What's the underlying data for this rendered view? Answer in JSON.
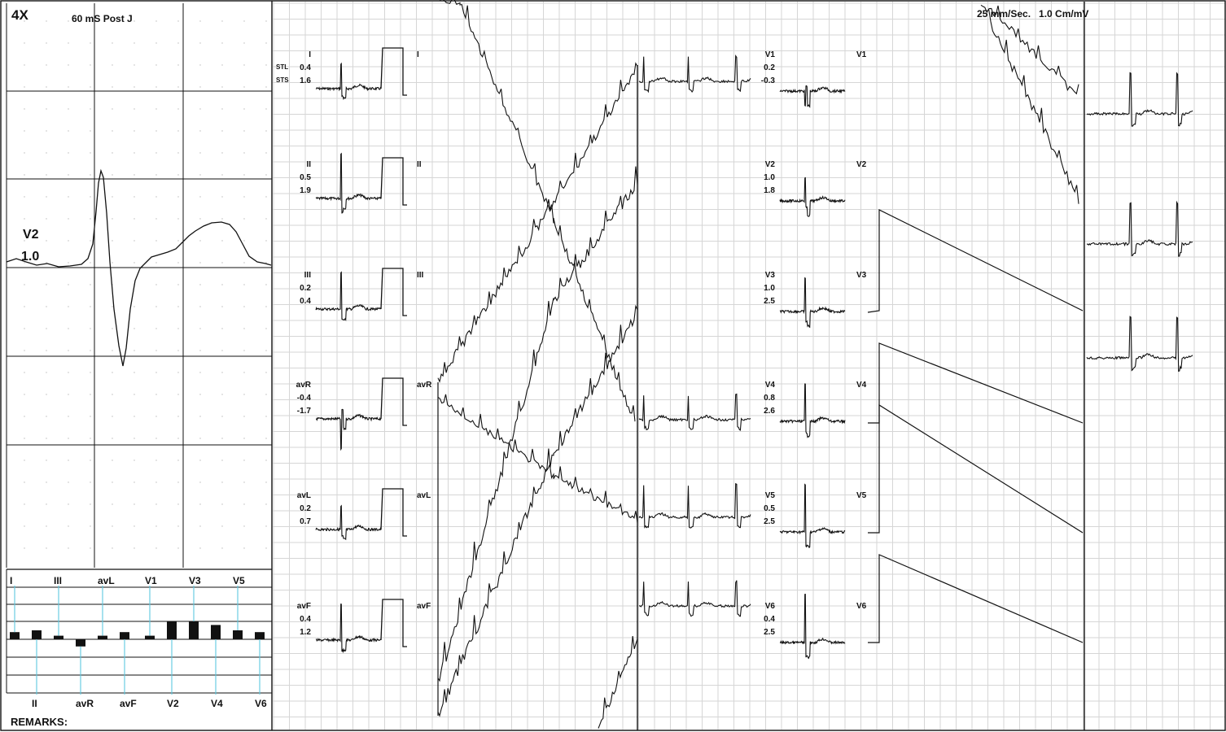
{
  "header": {
    "zoom_label": "4X",
    "measure_point": "60 mS Post J",
    "speed_gain": "25 mm/Sec.   1.0 Cm/mV"
  },
  "zoom_panel": {
    "lead": "V2",
    "value": "1.0"
  },
  "st_row_labels": [
    "STL",
    "STS"
  ],
  "leads_col1": [
    {
      "name": "I",
      "stl": "0.4",
      "sts": "1.6"
    },
    {
      "name": "II",
      "stl": "0.5",
      "sts": "1.9"
    },
    {
      "name": "III",
      "stl": "0.2",
      "sts": "0.4"
    },
    {
      "name": "avR",
      "stl": "-0.4",
      "sts": "-1.7"
    },
    {
      "name": "avL",
      "stl": "0.2",
      "sts": "0.7"
    },
    {
      "name": "avF",
      "stl": "0.4",
      "sts": "1.2"
    }
  ],
  "leads_col2": [
    {
      "name": "V1",
      "stl": "0.2",
      "sts": "-0.3"
    },
    {
      "name": "V2",
      "stl": "1.0",
      "sts": "1.8"
    },
    {
      "name": "V3",
      "stl": "1.0",
      "sts": "2.5"
    },
    {
      "name": "V4",
      "stl": "0.8",
      "sts": "2.6"
    },
    {
      "name": "V5",
      "stl": "0.5",
      "sts": "2.5"
    },
    {
      "name": "V6",
      "stl": "0.4",
      "sts": "2.5"
    }
  ],
  "histogram": {
    "top_labels": [
      "I",
      "III",
      "avL",
      "V1",
      "V3",
      "V5"
    ],
    "bottom_labels": [
      "II",
      "avR",
      "avF",
      "V2",
      "V4",
      "V6"
    ],
    "bars": [
      {
        "lead": "I",
        "value": 0.4
      },
      {
        "lead": "II",
        "value": 0.5
      },
      {
        "lead": "III",
        "value": 0.2
      },
      {
        "lead": "avR",
        "value": -0.4
      },
      {
        "lead": "avL",
        "value": 0.2
      },
      {
        "lead": "avF",
        "value": 0.4
      },
      {
        "lead": "V1",
        "value": 0.2
      },
      {
        "lead": "V2",
        "value": 1.0
      },
      {
        "lead": "V3",
        "value": 1.0
      },
      {
        "lead": "V4",
        "value": 0.8
      },
      {
        "lead": "V5",
        "value": 0.5
      },
      {
        "lead": "V6",
        "value": 0.4
      }
    ]
  },
  "remarks_label": "REMARKS:",
  "colors": {
    "grid_minor": "#d6d6d6",
    "trace": "#111111",
    "accent": "#5cc8e0"
  }
}
